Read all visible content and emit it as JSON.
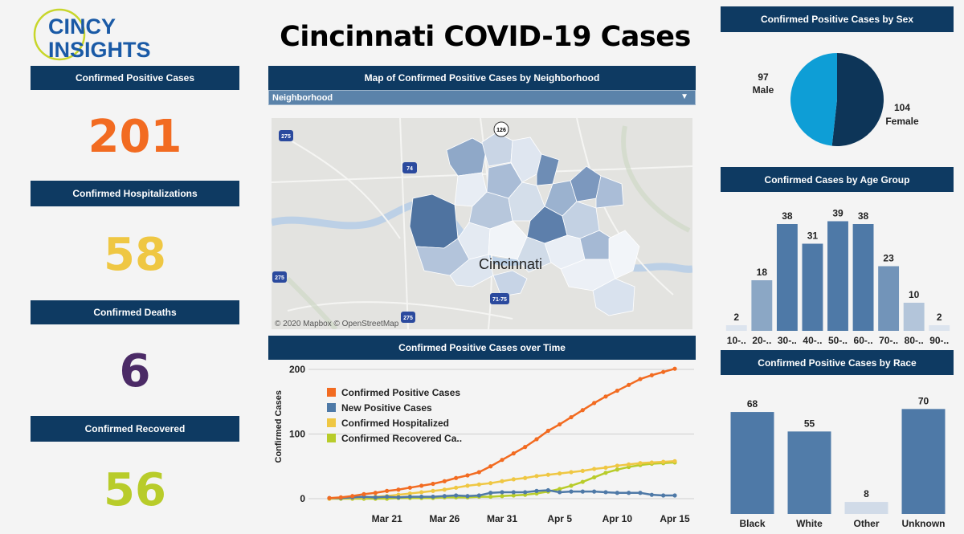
{
  "header": {
    "logo_line1": "CINCY",
    "logo_line2_a": "IN",
    "logo_line2_b": "SIGHTS",
    "title": "Cincinnati COVID-19 Cases"
  },
  "kpis": [
    {
      "label": "Confirmed Positive Cases",
      "value": "201",
      "color": "#f26b21"
    },
    {
      "label": "Confirmed Hospitalizations",
      "value": "58",
      "color": "#efc743"
    },
    {
      "label": "Confirmed Deaths",
      "value": "6",
      "color": "#4b2a66"
    },
    {
      "label": "Confirmed Recovered",
      "value": "56",
      "color": "#b8cc2a"
    }
  ],
  "map": {
    "title": "Map of Confirmed Positive Cases by Neighborhood",
    "filter_label": "Neighborhood",
    "city_label": "Cincinnati",
    "attribution": "© 2020 Mapbox  © OpenStreetMap",
    "highway_labels": [
      "275",
      "74",
      "126",
      "275",
      "71-75",
      "275"
    ]
  },
  "colors": {
    "header_bg": "#0e3a62",
    "positive": "#f26b21",
    "new_positive": "#4e79a7",
    "hospitalized": "#efc743",
    "recovered": "#b8cc2a",
    "male": "#0e9ed6",
    "female": "#0d3558"
  },
  "chart_data": [
    {
      "type": "pie",
      "title": "Confirmed Positive Cases by Sex",
      "slices": [
        {
          "label": "Male",
          "value": 97
        },
        {
          "label": "Female",
          "value": 104
        }
      ]
    },
    {
      "type": "bar",
      "title": "Confirmed Cases by Age Group",
      "categories": [
        "10-..",
        "20-..",
        "30-..",
        "40-..",
        "50-..",
        "60-..",
        "70-..",
        "80-..",
        "90-.."
      ],
      "values": [
        2,
        18,
        38,
        31,
        39,
        38,
        23,
        10,
        2
      ],
      "ylim": [
        0,
        40
      ]
    },
    {
      "type": "bar",
      "title": "Confirmed Positive Cases by Race",
      "categories": [
        "Black",
        "White",
        "Other",
        "Unknown"
      ],
      "values": [
        68,
        55,
        8,
        70
      ],
      "ylim": [
        0,
        75
      ]
    },
    {
      "type": "line",
      "title": "Confirmed Positive Cases over Time",
      "ylabel": "Confirmed Cases",
      "xlabel": "",
      "ylim": [
        0,
        200
      ],
      "yticks": [
        0,
        100,
        200
      ],
      "x": [
        "Mar 16",
        "Mar 17",
        "Mar 18",
        "Mar 19",
        "Mar 20",
        "Mar 21",
        "Mar 22",
        "Mar 23",
        "Mar 24",
        "Mar 25",
        "Mar 26",
        "Mar 27",
        "Mar 28",
        "Mar 29",
        "Mar 30",
        "Mar 31",
        "Apr 1",
        "Apr 2",
        "Apr 3",
        "Apr 4",
        "Apr 5",
        "Apr 6",
        "Apr 7",
        "Apr 8",
        "Apr 9",
        "Apr 10",
        "Apr 11",
        "Apr 12",
        "Apr 13",
        "Apr 14",
        "Apr 15"
      ],
      "xticks": [
        "Mar 21",
        "Mar 26",
        "Mar 31",
        "Apr 5",
        "Apr 10",
        "Apr 15"
      ],
      "series": [
        {
          "name": "Confirmed Positive Cases",
          "values": [
            1,
            2,
            4,
            7,
            9,
            12,
            14,
            17,
            20,
            23,
            27,
            32,
            36,
            41,
            50,
            60,
            70,
            80,
            92,
            105,
            115,
            126,
            137,
            148,
            158,
            167,
            176,
            185,
            191,
            196,
            201
          ]
        },
        {
          "name": "New Positive Cases",
          "values": [
            1,
            1,
            2,
            3,
            2,
            3,
            2,
            3,
            3,
            3,
            4,
            5,
            4,
            5,
            9,
            10,
            10,
            10,
            12,
            13,
            10,
            11,
            11,
            11,
            10,
            9,
            9,
            9,
            6,
            5,
            5
          ]
        },
        {
          "name": "Confirmed Hospitalized",
          "values": [
            0,
            1,
            1,
            2,
            3,
            4,
            6,
            8,
            10,
            12,
            14,
            17,
            20,
            22,
            24,
            27,
            30,
            32,
            35,
            37,
            39,
            41,
            43,
            46,
            48,
            51,
            53,
            55,
            56,
            57,
            58
          ]
        },
        {
          "name": "Confirmed Recovered Ca..",
          "values": [
            0,
            0,
            0,
            0,
            0,
            0,
            1,
            1,
            1,
            1,
            2,
            2,
            2,
            3,
            3,
            4,
            5,
            6,
            8,
            11,
            15,
            20,
            26,
            33,
            40,
            45,
            49,
            52,
            54,
            55,
            56
          ]
        }
      ]
    }
  ]
}
